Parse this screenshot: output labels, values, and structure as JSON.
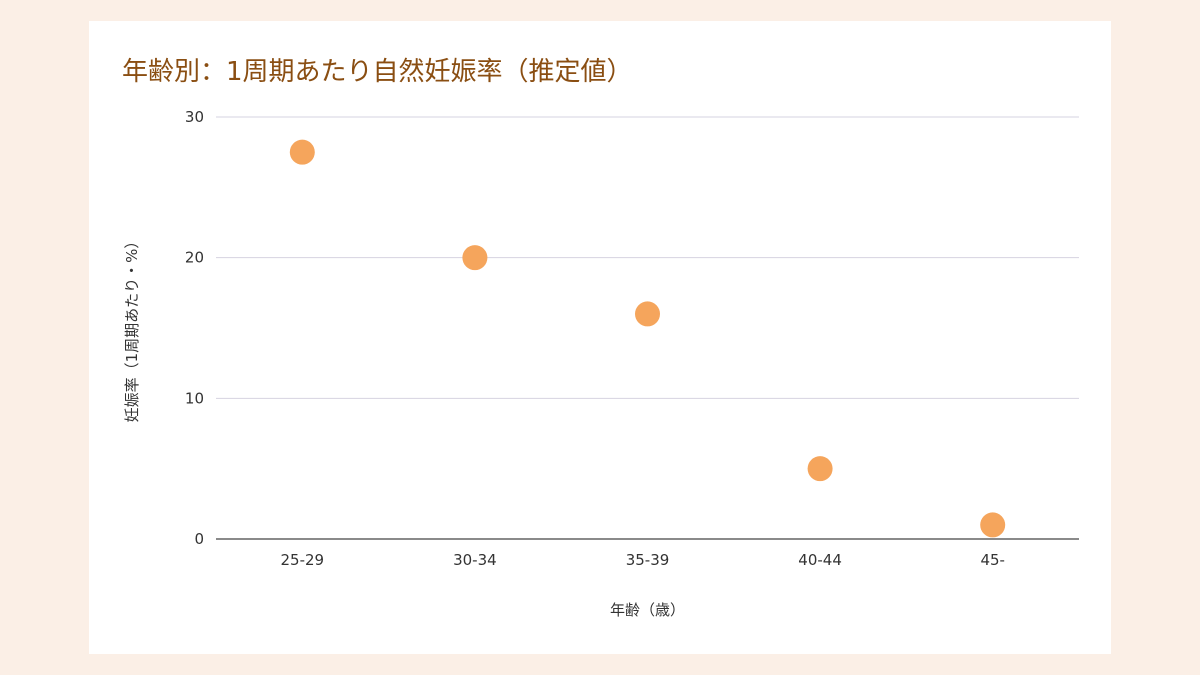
{
  "chart_data": {
    "type": "scatter",
    "title": "年齢別：1周期あたり自然妊娠率（推定値）",
    "xlabel": "年齢（歳）",
    "ylabel": "妊娠率（1周期あたり・%）",
    "categories": [
      "25-29",
      "30-34",
      "35-39",
      "40-44",
      "45-"
    ],
    "values": [
      27.5,
      20,
      16,
      5,
      1
    ],
    "ylim": [
      0,
      30
    ],
    "yticks": [
      "0",
      "10",
      "20",
      "30"
    ],
    "grid": true,
    "legend": "none",
    "colors": {
      "point": "#f5a55c",
      "title": "#8a4e12",
      "grid": "#d6d3e0",
      "axis": "#444444"
    }
  }
}
